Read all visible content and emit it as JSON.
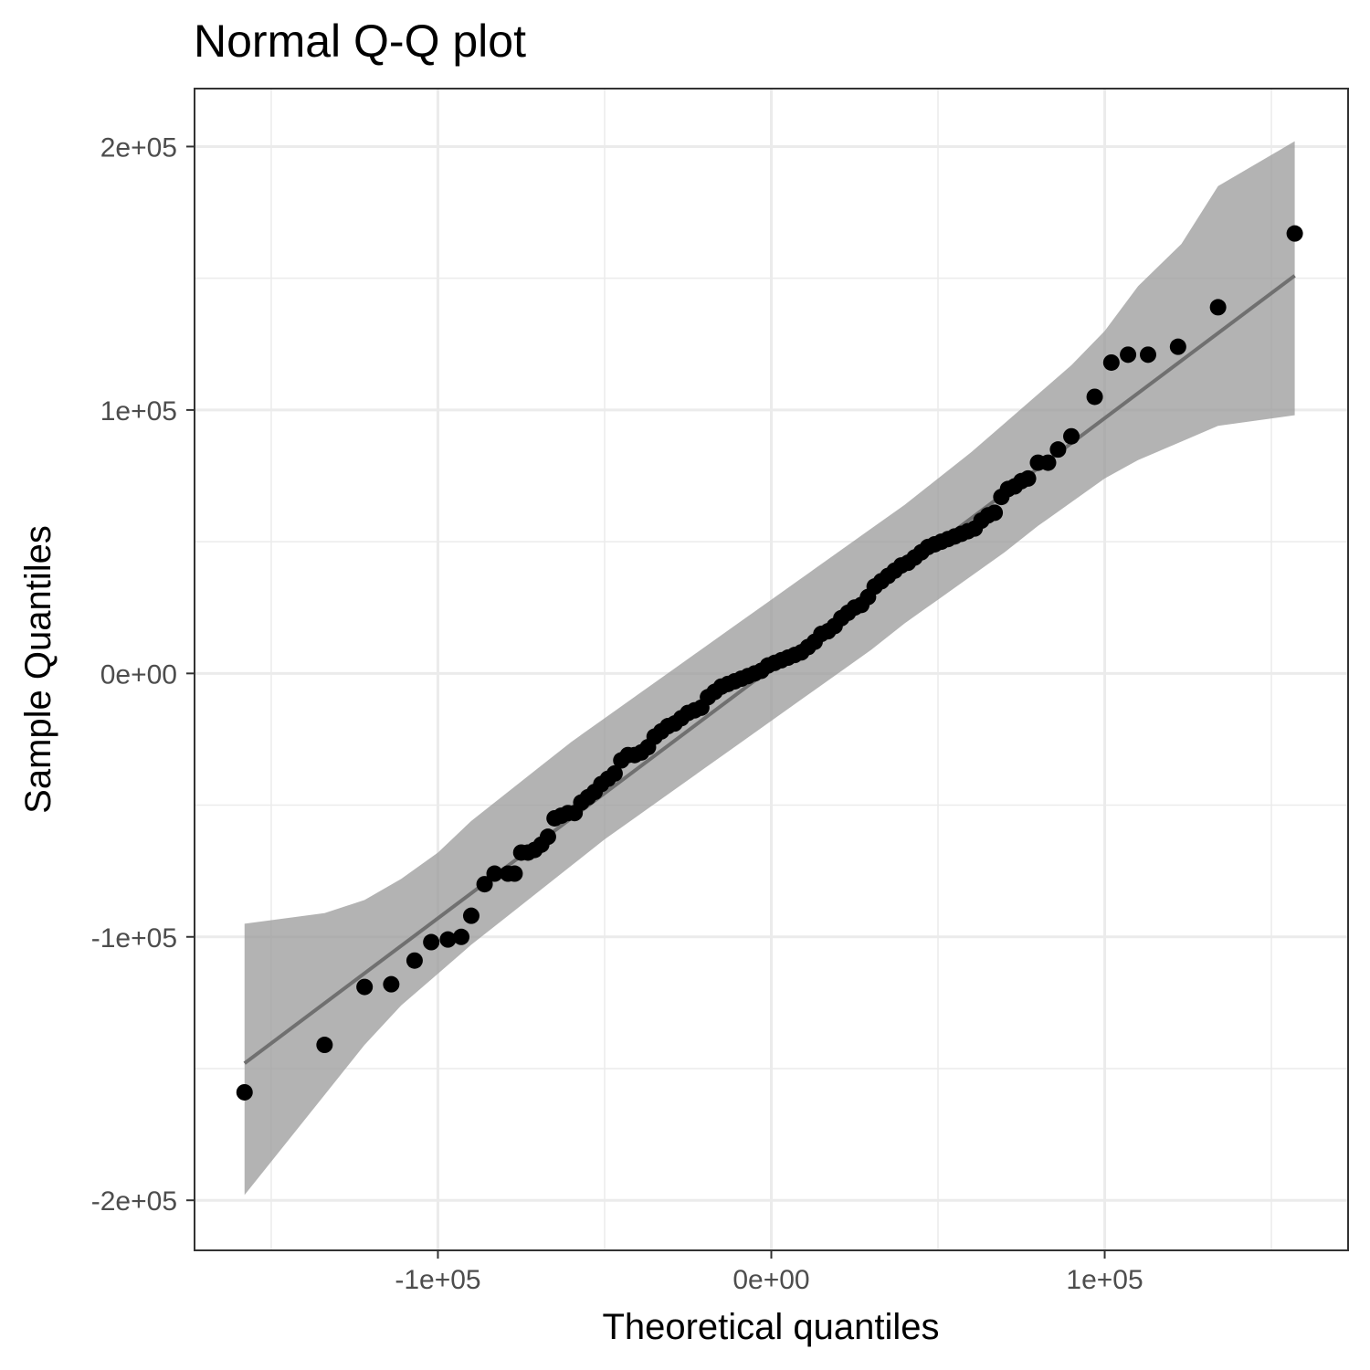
{
  "chart_data": {
    "type": "scatter",
    "title": "Normal Q-Q plot",
    "xlabel": "Theoretical quantiles",
    "ylabel": "Sample Quantiles",
    "xlim": [
      -173000,
      173000
    ],
    "ylim": [
      -219000,
      222000
    ],
    "x_ticks": [
      {
        "value": -100000,
        "label": "-1e+05"
      },
      {
        "value": 0,
        "label": "0e+00"
      },
      {
        "value": 100000,
        "label": "1e+05"
      }
    ],
    "y_ticks": [
      {
        "value": -200000,
        "label": "-2e+05"
      },
      {
        "value": -100000,
        "label": "-1e+05"
      },
      {
        "value": 0,
        "label": "0e+00"
      },
      {
        "value": 100000,
        "label": "1e+05"
      },
      {
        "value": 200000,
        "label": "2e+05"
      }
    ],
    "x_minor": [
      -150000,
      -50000,
      50000,
      150000
    ],
    "y_minor": [
      -150000,
      -50000,
      50000,
      150000
    ],
    "grid": true,
    "reference_line": {
      "x": [
        -158000,
        157000
      ],
      "y": [
        -148000,
        151000
      ]
    },
    "confidence_band": {
      "x": [
        -158000,
        -134000,
        -122000,
        -111000,
        -100000,
        -90000,
        -80000,
        -70000,
        -60000,
        -50000,
        -40000,
        -30000,
        -20000,
        -10000,
        0,
        10000,
        20000,
        30000,
        40000,
        50000,
        60000,
        70000,
        80000,
        90000,
        100000,
        110000,
        123000,
        134000,
        157000
      ],
      "lower": [
        -198000,
        -160000,
        -141000,
        -126000,
        -114000,
        -103000,
        -93000,
        -83000,
        -73000,
        -63000,
        -54000,
        -45000,
        -36000,
        -27000,
        -18000,
        -9000,
        0,
        9000,
        19000,
        28000,
        37000,
        46000,
        56000,
        65000,
        74000,
        81000,
        88000,
        94000,
        98000
      ],
      "upper": [
        -95000,
        -91000,
        -86000,
        -78000,
        -68000,
        -56000,
        -46000,
        -36000,
        -26000,
        -17000,
        -8000,
        1000,
        10000,
        19000,
        28000,
        37000,
        46000,
        55000,
        64000,
        74000,
        84000,
        95000,
        106000,
        117000,
        130000,
        147000,
        163000,
        185000,
        202000
      ]
    },
    "points": {
      "x": [
        -158000,
        -134000,
        -122000,
        -114000,
        -107000,
        -102000,
        -97000,
        -93000,
        -90000,
        -86000,
        -83000,
        -79000,
        -77000,
        -75000,
        -73000,
        -71000,
        -69000,
        -67000,
        -65000,
        -63000,
        -61000,
        -59000,
        -57000,
        -55000,
        -53000,
        -51000,
        -49000,
        -47000,
        -45000,
        -43000,
        -41000,
        -39000,
        -37000,
        -35000,
        -33000,
        -31000,
        -29000,
        -27000,
        -25000,
        -23000,
        -21000,
        -19000,
        -17000,
        -15000,
        -13000,
        -11000,
        -9000,
        -7000,
        -5000,
        -3000,
        -1000,
        1000,
        3000,
        5000,
        7000,
        9000,
        11000,
        13000,
        15000,
        17000,
        19000,
        21000,
        23000,
        25000,
        27000,
        29000,
        31000,
        33000,
        35000,
        37000,
        39000,
        41000,
        43000,
        45000,
        47000,
        49000,
        51000,
        53000,
        55000,
        57000,
        59000,
        61000,
        63000,
        65000,
        67000,
        69000,
        71000,
        73000,
        75000,
        77000,
        80000,
        83000,
        86000,
        90000,
        97000,
        102000,
        107000,
        113000,
        122000,
        134000,
        157000
      ],
      "y": [
        -159000,
        -141000,
        -119000,
        -118000,
        -109000,
        -102000,
        -101000,
        -100000,
        -92000,
        -80000,
        -76000,
        -76000,
        -76000,
        -68000,
        -68000,
        -67000,
        -65000,
        -62000,
        -55000,
        -54000,
        -53000,
        -53000,
        -49000,
        -47000,
        -45000,
        -42000,
        -40000,
        -38000,
        -33000,
        -31000,
        -31000,
        -30000,
        -28000,
        -24000,
        -22000,
        -20000,
        -19000,
        -17000,
        -15000,
        -14000,
        -13000,
        -9000,
        -7000,
        -5000,
        -4000,
        -3000,
        -2000,
        -1000,
        0,
        1000,
        3000,
        4000,
        5000,
        6000,
        7000,
        8000,
        10000,
        12000,
        15000,
        16000,
        18000,
        21000,
        23000,
        25000,
        26000,
        29000,
        33000,
        35000,
        37000,
        39000,
        41000,
        42000,
        44000,
        46000,
        48000,
        49000,
        50000,
        51000,
        52000,
        53000,
        54000,
        55000,
        58000,
        60000,
        61000,
        67000,
        70000,
        71000,
        73000,
        74000,
        80000,
        80000,
        85000,
        90000,
        105000,
        118000,
        121000,
        121000,
        124000,
        139000,
        167000
      ]
    }
  }
}
